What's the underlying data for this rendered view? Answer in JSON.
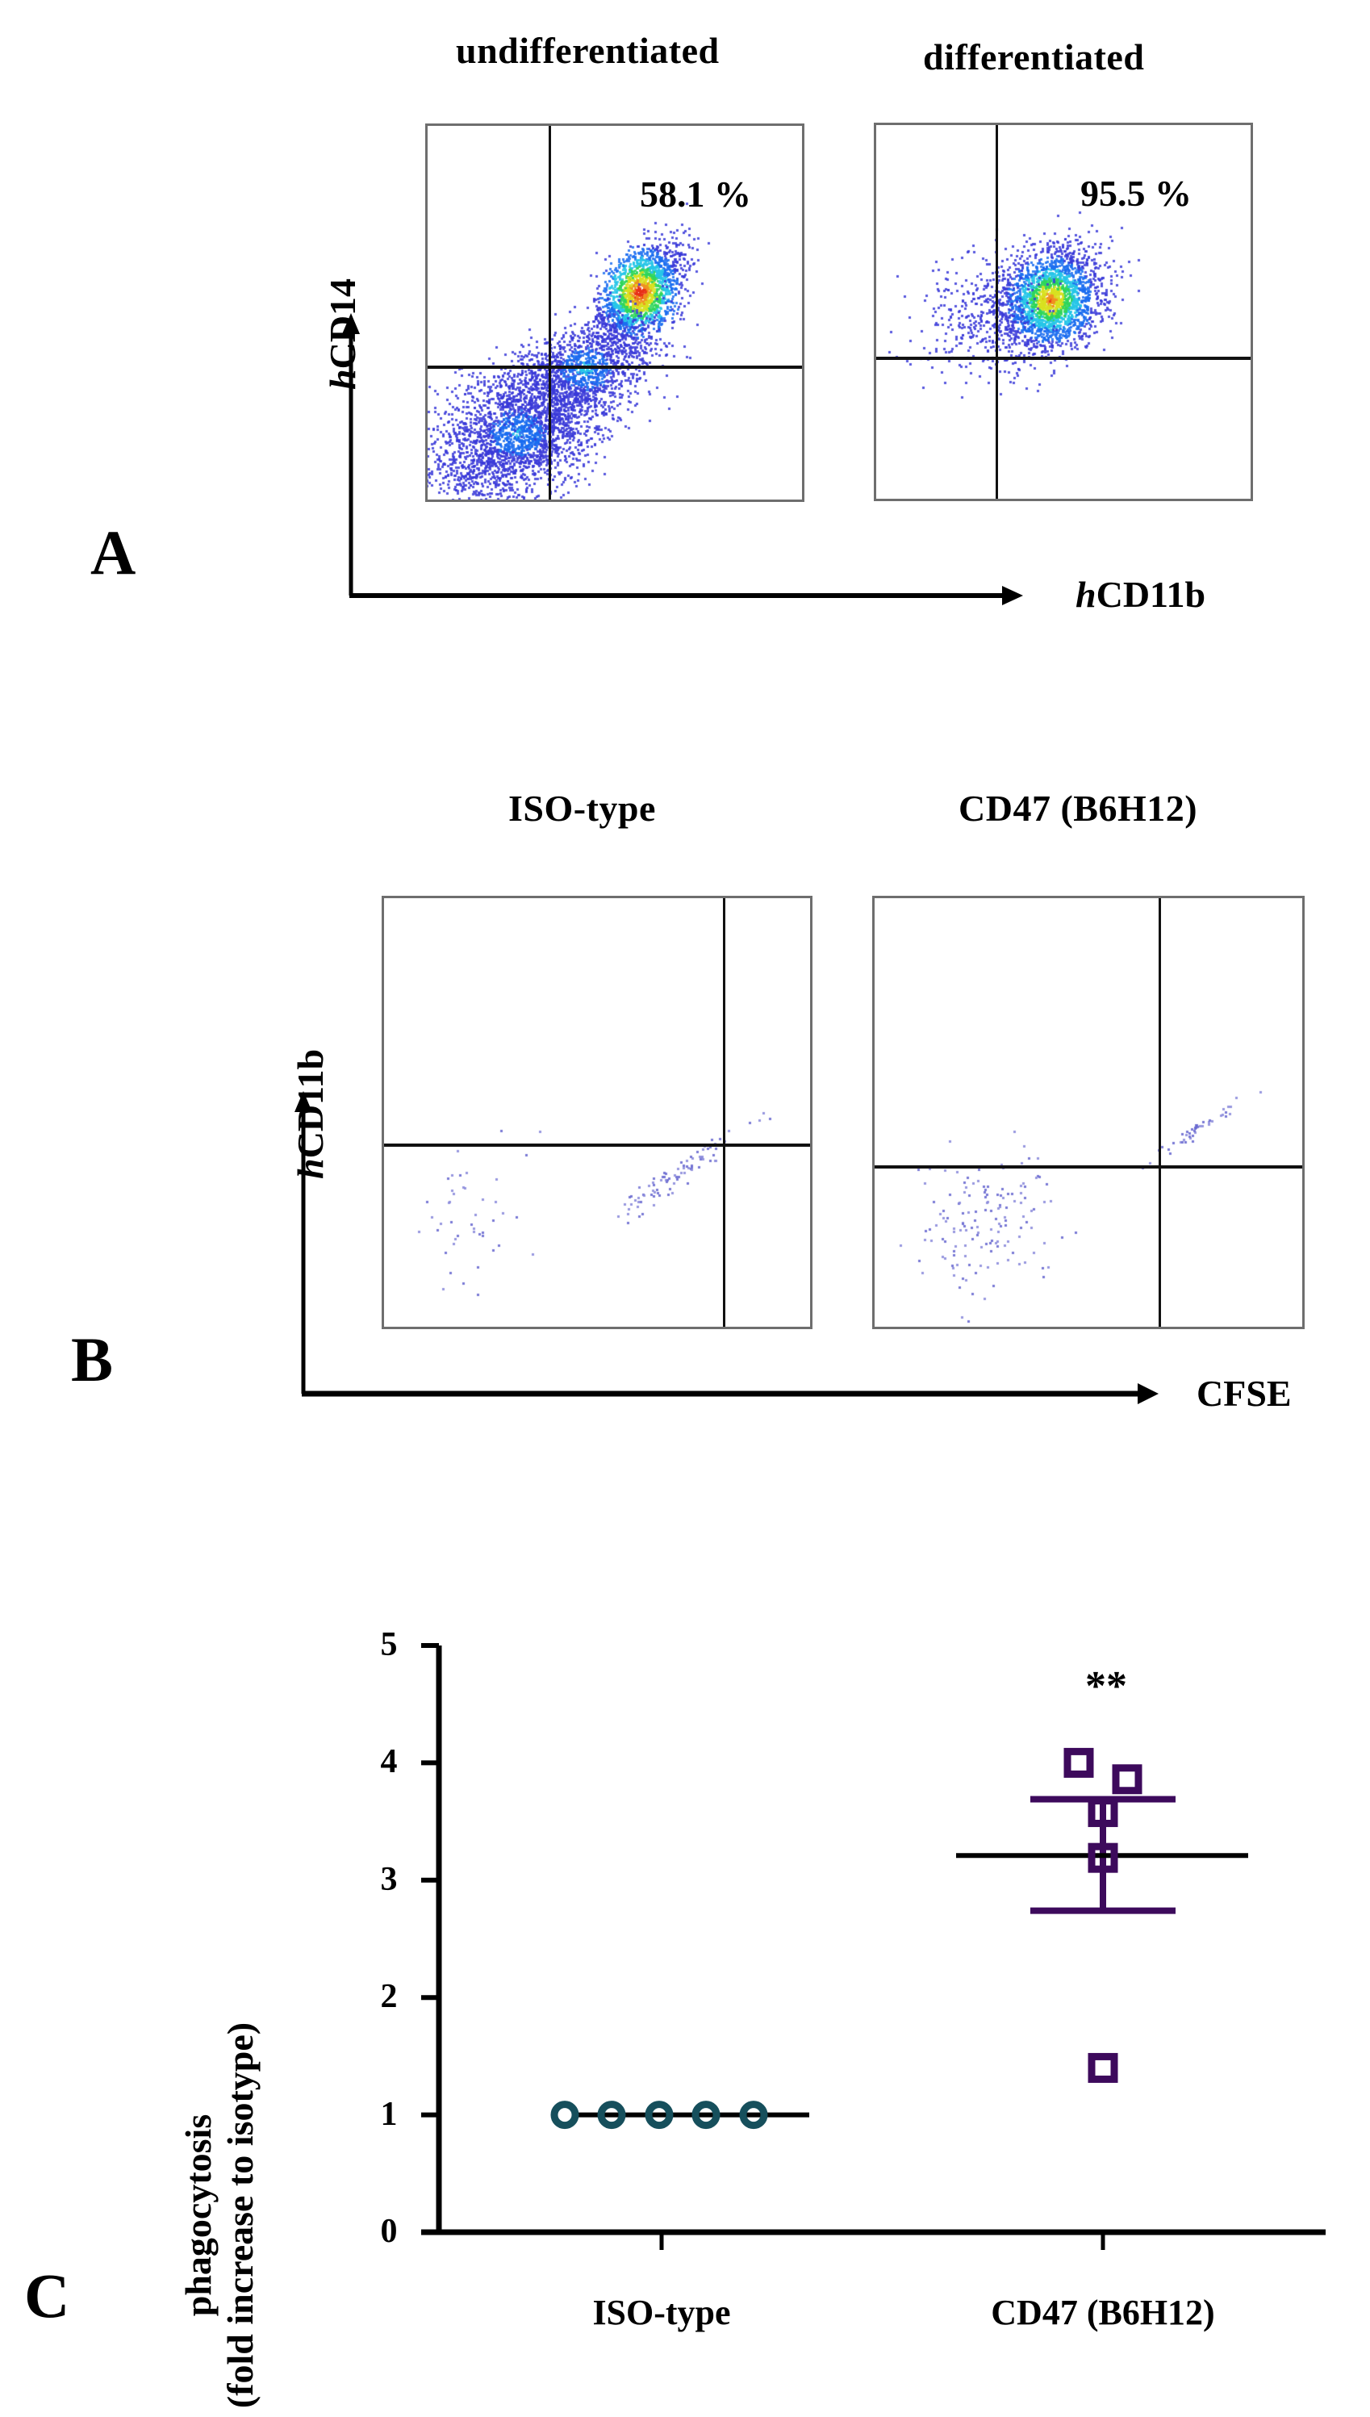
{
  "panelA": {
    "letter": "A",
    "titles": [
      "undifferentiated",
      "differentiated"
    ],
    "x_axis": {
      "prefix": "h",
      "label": "CD11b"
    },
    "y_axis": {
      "prefix": "h",
      "label": "CD14"
    },
    "plots": [
      {
        "name": "undifferentiated",
        "upper_right_pct": "58.1 %"
      },
      {
        "name": "differentiated",
        "upper_right_pct": "95.5 %"
      }
    ]
  },
  "panelB": {
    "letter": "B",
    "titles": [
      "ISO-type",
      "CD47 (B6H12)"
    ],
    "x_axis": {
      "label": "CFSE"
    },
    "y_axis": {
      "prefix": "h",
      "label": "CD11b"
    }
  },
  "panelC": {
    "letter": "C",
    "significance": "**",
    "y_label_line1": "phagocytosis",
    "y_label_line2": "(fold increase to isotype)",
    "y_ticks": [
      "0",
      "1",
      "2",
      "3",
      "4",
      "5"
    ],
    "categories": [
      "ISO-type",
      "CD47 (B6H12)"
    ]
  },
  "colors": {
    "iso_series": "#164f5c",
    "cd47_series": "#3d0a5c",
    "axis": "#000000",
    "facs_frame": "#6e6e6e"
  },
  "chart_data": {
    "type": "scatter",
    "title": "",
    "xlabel": "",
    "ylabel": "phagocytosis (fold increase to isotype)",
    "ylim": [
      0,
      5
    ],
    "y_ticks": [
      0,
      1,
      2,
      3,
      4,
      5
    ],
    "categories": [
      "ISO-type",
      "CD47 (B6H12)"
    ],
    "grid": false,
    "series": [
      {
        "name": "ISO-type",
        "marker": "open-circle",
        "values": [
          1.0,
          1.0,
          1.0,
          1.0,
          1.0
        ],
        "mean": 1.0,
        "sem": 0.0
      },
      {
        "name": "CD47 (B6H12)",
        "marker": "open-square",
        "values": [
          4.0,
          3.86,
          3.58,
          3.19,
          1.4
        ],
        "mean": 3.21,
        "sem_upper": 3.69,
        "sem_lower": 2.74
      }
    ],
    "annotations": [
      {
        "text": "**",
        "category": "CD47 (B6H12)",
        "y": 4.7
      }
    ]
  }
}
